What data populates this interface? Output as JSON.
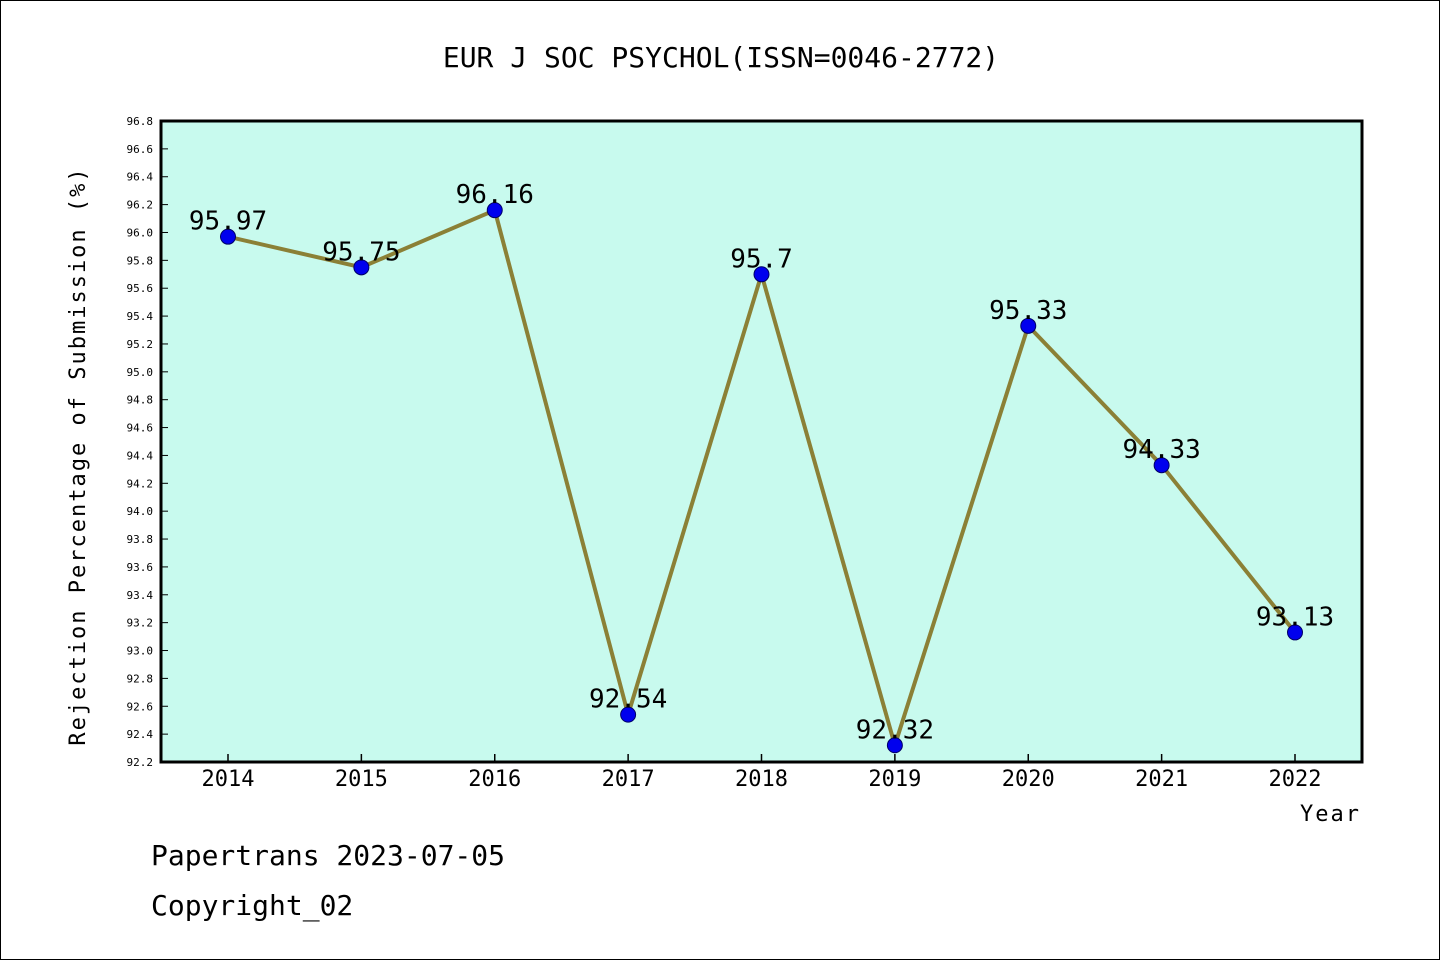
{
  "chart_data": {
    "type": "line",
    "title": "EUR J SOC PSYCHOL(ISSN=0046-2772)",
    "xlabel": "Year",
    "ylabel": "Rejection Percentage of Submission (%)",
    "categories": [
      "2014",
      "2015",
      "2016",
      "2017",
      "2018",
      "2019",
      "2020",
      "2021",
      "2022"
    ],
    "values": [
      95.97,
      95.75,
      96.16,
      92.54,
      95.7,
      92.32,
      95.33,
      94.33,
      93.13
    ],
    "value_labels": [
      "95.97",
      "95.75",
      "96.16",
      "92.54",
      "95.7",
      "92.32",
      "95.33",
      "94.33",
      "93.13"
    ],
    "ylim": [
      92.2,
      96.8
    ],
    "yticks": [
      "92.2",
      "92.4",
      "92.6",
      "92.8",
      "93.0",
      "93.2",
      "93.4",
      "93.6",
      "93.8",
      "94.0",
      "94.2",
      "94.4",
      "94.6",
      "94.8",
      "95.0",
      "95.2",
      "95.4",
      "95.6",
      "95.8",
      "96.0",
      "96.2",
      "96.4",
      "96.6",
      "96.8"
    ],
    "grid": false,
    "plot_background": "#c8faee",
    "line_color": "#8b8036",
    "marker_color": "#0000ee"
  },
  "footer": {
    "line1": "Papertrans 2023-07-05",
    "line2": "Copyright_02"
  }
}
